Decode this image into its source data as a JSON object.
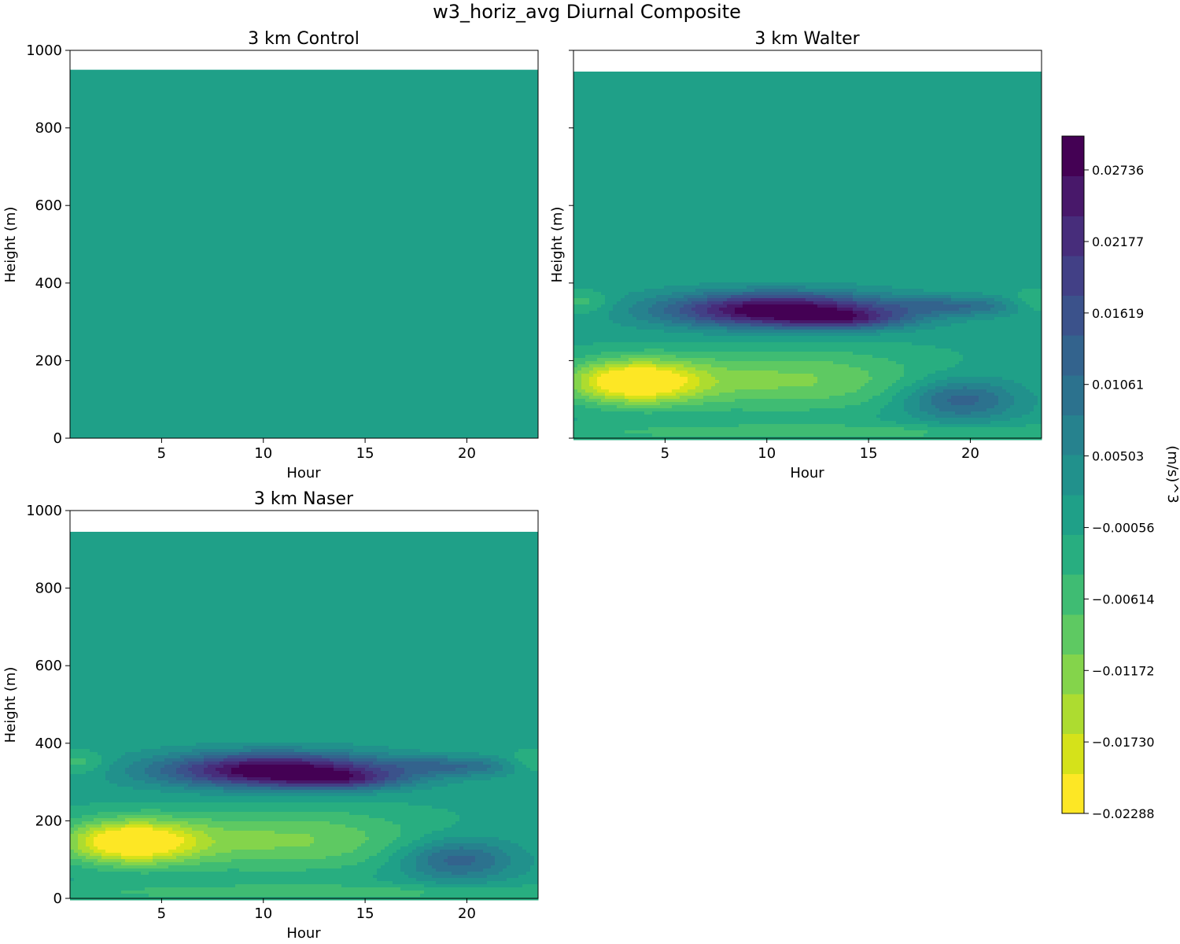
{
  "figure": {
    "title": "w3_horiz_avg Diurnal Composite"
  },
  "colors": {
    "background_field": "#20a087",
    "levels": [
      "#fde725",
      "#d5e21a",
      "#addc30",
      "#84d44b",
      "#5ec962",
      "#3fbc73",
      "#28ae80",
      "#1fa088",
      "#21918c",
      "#26828e",
      "#2c728e",
      "#33638d",
      "#3b528b",
      "#424086",
      "#472d7b",
      "#48186a",
      "#440154"
    ]
  },
  "chart_data": [
    {
      "type": "contourf",
      "title": "3 km Control",
      "xlabel": "Hour",
      "ylabel": "Height (m)",
      "xticks": [
        "5",
        "10",
        "15",
        "20"
      ],
      "yticks": [
        "0",
        "200",
        "400",
        "600",
        "800",
        "1000"
      ],
      "xlim": [
        0.5,
        23.5
      ],
      "ylim": [
        0,
        1000
      ],
      "data_top": 950,
      "show_ytick_labels": true,
      "field": "uniform",
      "uniform_value": 0.0,
      "features": []
    },
    {
      "type": "contourf",
      "title": "3 km Walter",
      "xlabel": "Hour",
      "ylabel": "Height (m)",
      "xticks": [
        "5",
        "10",
        "15",
        "20"
      ],
      "yticks": [
        "0",
        "200",
        "400",
        "600",
        "800",
        "1000"
      ],
      "xlim": [
        0.5,
        23.5
      ],
      "ylim": [
        0,
        1000
      ],
      "data_top": 945,
      "show_ytick_labels": false,
      "field": "structured",
      "features": [
        {
          "hour": 10.5,
          "height": 330,
          "hour_spread": 5.5,
          "height_spread": 45,
          "value": 0.031
        },
        {
          "hour": 14,
          "height": 305,
          "hour_spread": 3.0,
          "height_spread": 25,
          "value": 0.012
        },
        {
          "hour": 19.5,
          "height": 340,
          "hour_spread": 3.5,
          "height_spread": 25,
          "value": 0.01
        },
        {
          "hour": 3.5,
          "height": 145,
          "hour_spread": 3.2,
          "height_spread": 55,
          "value": -0.025
        },
        {
          "hour": 11,
          "height": 150,
          "hour_spread": 7.0,
          "height_spread": 80,
          "value": -0.011
        },
        {
          "hour": 19.5,
          "height": 100,
          "hour_spread": 2.8,
          "height_spread": 55,
          "value": 0.014
        },
        {
          "hour": 12,
          "height": 15,
          "hour_spread": 14.0,
          "height_spread": 22,
          "value": -0.006
        },
        {
          "hour": 1.0,
          "height": 350,
          "hour_spread": 1.3,
          "height_spread": 30,
          "value": -0.006
        },
        {
          "hour": 23.2,
          "height": 350,
          "hour_spread": 1.3,
          "height_spread": 30,
          "value": -0.006
        }
      ]
    },
    {
      "type": "contourf",
      "title": "3 km Naser",
      "xlabel": "Hour",
      "ylabel": "Height (m)",
      "xticks": [
        "5",
        "10",
        "15",
        "20"
      ],
      "yticks": [
        "0",
        "200",
        "400",
        "600",
        "800",
        "1000"
      ],
      "xlim": [
        0.5,
        23.5
      ],
      "ylim": [
        0,
        1000
      ],
      "data_top": 945,
      "show_ytick_labels": true,
      "field": "structured",
      "features": [
        {
          "hour": 10.5,
          "height": 330,
          "hour_spread": 5.5,
          "height_spread": 45,
          "value": 0.031
        },
        {
          "hour": 14,
          "height": 305,
          "hour_spread": 3.0,
          "height_spread": 25,
          "value": 0.012
        },
        {
          "hour": 19.5,
          "height": 340,
          "hour_spread": 3.5,
          "height_spread": 25,
          "value": 0.01
        },
        {
          "hour": 3.5,
          "height": 145,
          "hour_spread": 3.2,
          "height_spread": 55,
          "value": -0.025
        },
        {
          "hour": 11,
          "height": 150,
          "hour_spread": 7.0,
          "height_spread": 80,
          "value": -0.011
        },
        {
          "hour": 19.5,
          "height": 100,
          "hour_spread": 2.8,
          "height_spread": 55,
          "value": 0.014
        },
        {
          "hour": 12,
          "height": 15,
          "hour_spread": 14.0,
          "height_spread": 22,
          "value": -0.006
        },
        {
          "hour": 1.0,
          "height": 350,
          "hour_spread": 1.3,
          "height_spread": 30,
          "value": -0.006
        },
        {
          "hour": 23.2,
          "height": 350,
          "hour_spread": 1.3,
          "height_spread": 30,
          "value": -0.006
        }
      ]
    }
  ],
  "colorbar": {
    "label": "(m/s)^3",
    "vmin": -0.02288,
    "vmax": 0.03,
    "tick_values": [
      -0.02288,
      -0.0173,
      -0.01172,
      -0.00614,
      -0.00056,
      0.00503,
      0.01061,
      0.01619,
      0.02177,
      0.02736
    ],
    "tick_labels": [
      "−0.02288",
      "−0.01730",
      "−0.01172",
      "−0.00614",
      "−0.00056",
      "0.00503",
      "0.01061",
      "0.01619",
      "0.02177",
      "0.02736"
    ]
  }
}
